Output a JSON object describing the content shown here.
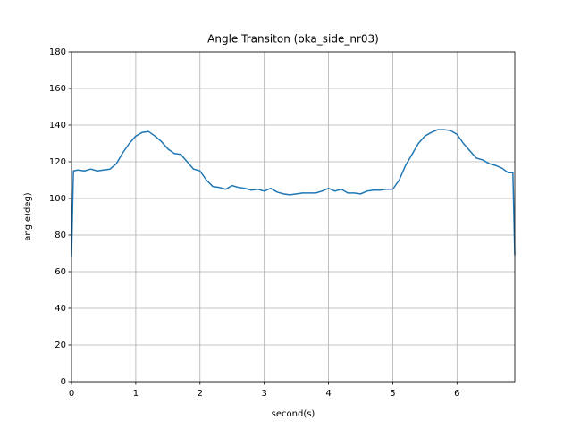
{
  "chart_data": {
    "type": "line",
    "title": "Angle Transiton (oka_side_nr03)",
    "x_label": "second(s)",
    "y_label": "angle(deg)",
    "xlim": [
      0,
      6.9
    ],
    "ylim": [
      0,
      180
    ],
    "xticks": [
      0,
      1,
      2,
      3,
      4,
      5,
      6
    ],
    "yticks": [
      0,
      20,
      40,
      60,
      80,
      100,
      120,
      140,
      160,
      180
    ],
    "grid": true,
    "x": [
      0,
      0.03,
      0.1,
      0.2,
      0.3,
      0.4,
      0.5,
      0.6,
      0.7,
      0.8,
      0.9,
      1.0,
      1.1,
      1.2,
      1.3,
      1.4,
      1.5,
      1.6,
      1.7,
      1.8,
      1.9,
      2.0,
      2.1,
      2.2,
      2.3,
      2.4,
      2.5,
      2.6,
      2.7,
      2.8,
      2.9,
      3.0,
      3.1,
      3.2,
      3.3,
      3.4,
      3.5,
      3.6,
      3.7,
      3.8,
      3.9,
      4.0,
      4.1,
      4.2,
      4.3,
      4.4,
      4.5,
      4.6,
      4.7,
      4.8,
      4.9,
      5.0,
      5.1,
      5.2,
      5.3,
      5.4,
      5.5,
      5.6,
      5.7,
      5.8,
      5.9,
      6.0,
      6.1,
      6.2,
      6.3,
      6.4,
      6.5,
      6.6,
      6.7,
      6.8,
      6.87,
      6.9
    ],
    "series": [
      {
        "color": "#1f77b4",
        "values": [
          68,
          115,
          115.5,
          115,
          116,
          115,
          115.5,
          116,
          119,
          125,
          130,
          134,
          136,
          136.5,
          134,
          131,
          127,
          124.5,
          124,
          120,
          116,
          115,
          110,
          106.5,
          106,
          105,
          107,
          106,
          105.5,
          104.5,
          105,
          104,
          105.5,
          103.5,
          102.5,
          102,
          102.5,
          103,
          103,
          103,
          104,
          105.5,
          104,
          105,
          103,
          103,
          102.5,
          104,
          104.5,
          104.5,
          105,
          105,
          110,
          118,
          124,
          130,
          134,
          136,
          137.5,
          137.5,
          137,
          135,
          130,
          126,
          122,
          121,
          119,
          118,
          116.5,
          114,
          114,
          69
        ]
      }
    ]
  }
}
